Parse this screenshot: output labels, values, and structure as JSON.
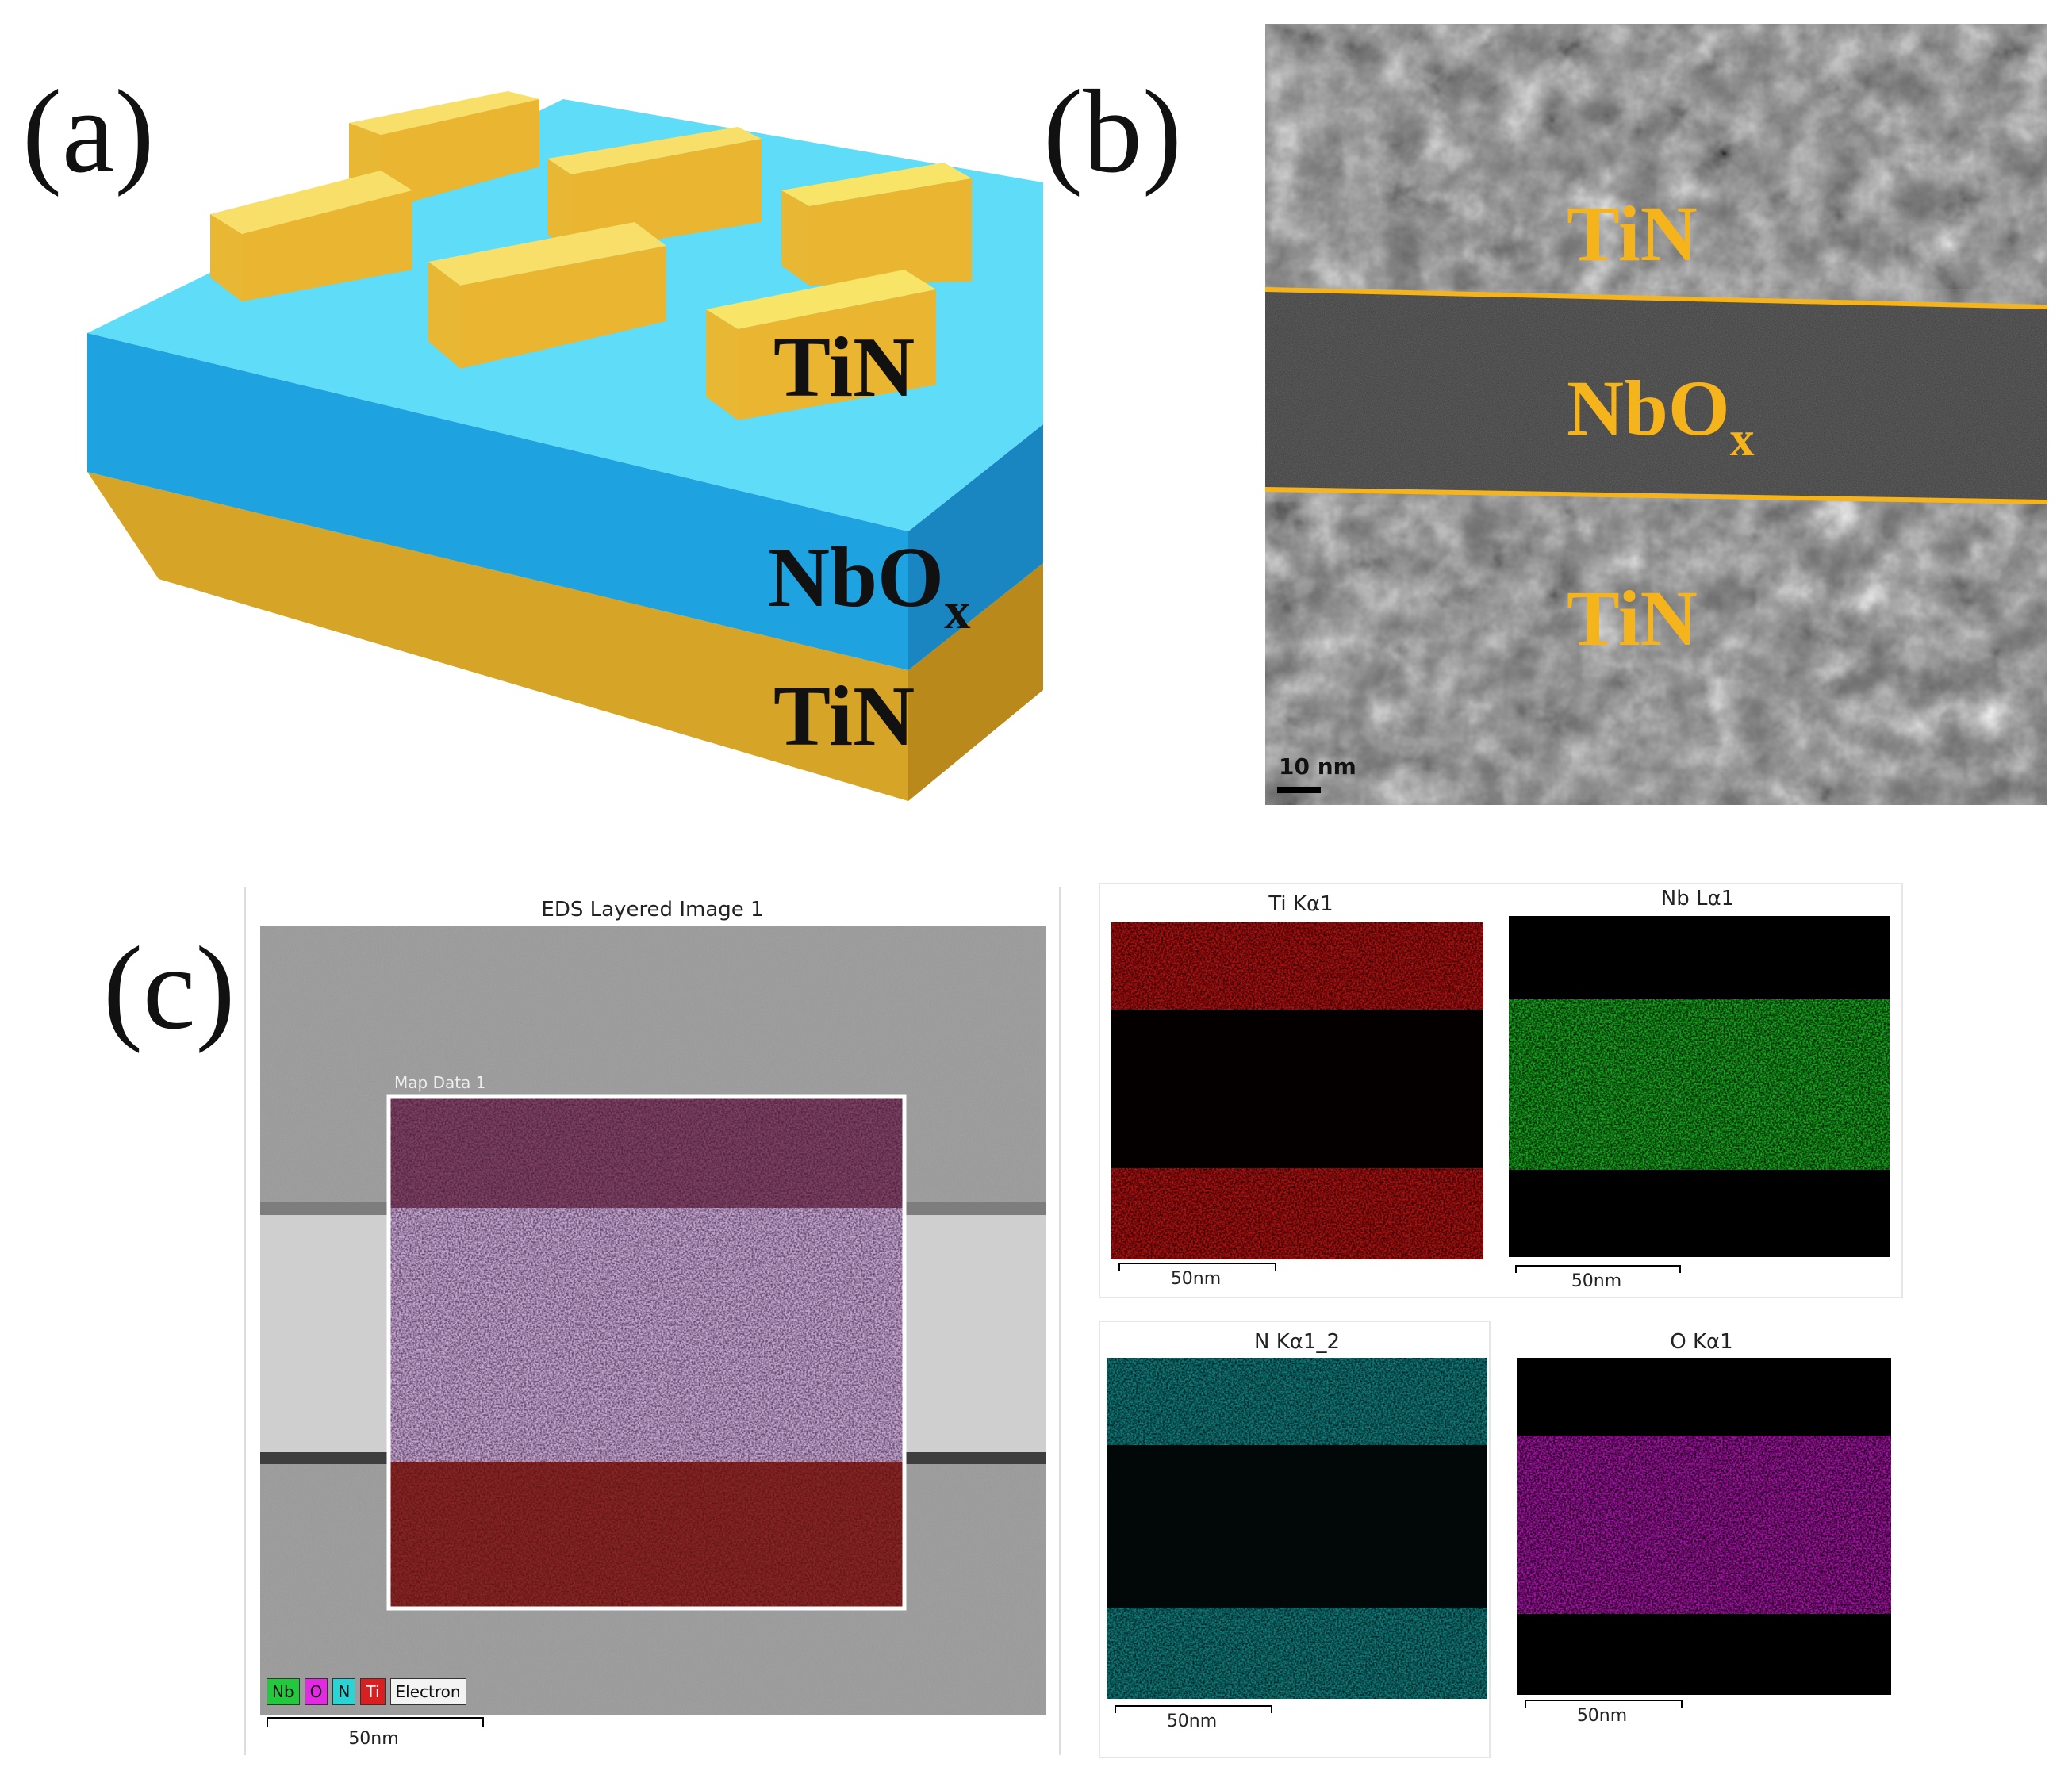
{
  "panel_a": {
    "letter": "(a)",
    "top_label": "TiN",
    "middle_label_main": "NbO",
    "middle_label_sub": "x",
    "bottom_label": "TiN",
    "colors": {
      "electrode": "#f2c23c",
      "oxide": "#3cc0ee",
      "bottom": "#d7a528"
    }
  },
  "panel_b": {
    "letter": "(b)",
    "top_label": "TiN",
    "middle_label_main": "NbO",
    "middle_label_sub": "x",
    "bottom_label": "TiN",
    "scale_bar": "10 nm",
    "colors": {
      "label": "#f6b41c"
    }
  },
  "panel_c": {
    "letter": "(c)",
    "eds_title": "EDS Layered Image 1",
    "map_label": "Map Data 1",
    "legend": [
      "Nb",
      "O",
      "N",
      "Ti",
      "Electron"
    ],
    "scale_bar": "50nm",
    "maps": [
      {
        "title": "Ti Kα1",
        "scale": "50nm",
        "color": "#e01414"
      },
      {
        "title": "Nb Lα1",
        "scale": "50nm",
        "color": "#21d821"
      },
      {
        "title": "N Kα1_2",
        "scale": "50nm",
        "color": "#2ad4d4"
      },
      {
        "title": "O Kα1",
        "scale": "50nm",
        "color": "#e22ae2"
      }
    ]
  }
}
